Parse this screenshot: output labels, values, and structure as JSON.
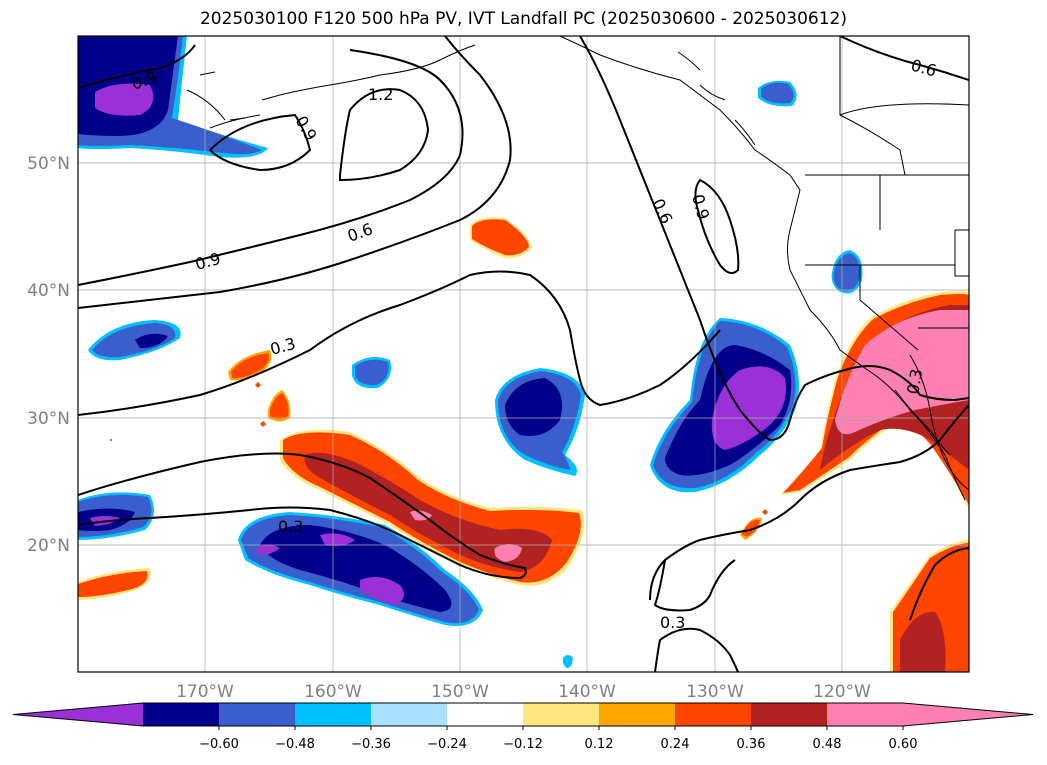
{
  "title": "2025030100 F120 500 hPa PV, IVT Landfall PC (2025030600 - 2025030612)",
  "axes": {
    "lat_ticks": [
      "50°N",
      "40°N",
      "30°N",
      "20°N"
    ],
    "lon_ticks": [
      "170°W",
      "160°W",
      "150°W",
      "140°W",
      "130°W",
      "120°W"
    ]
  },
  "contour_labels": [
    "0.9",
    "1.2",
    "0.9",
    "0.6",
    "0.6",
    "0.9",
    "0.9",
    "0.6",
    "0.3",
    "0.3",
    "0.3",
    "0.3"
  ],
  "colorbar": {
    "tick_labels": [
      "−0.60",
      "−0.48",
      "−0.36",
      "−0.24",
      "−0.12",
      "0.12",
      "0.24",
      "0.36",
      "0.48",
      "0.60"
    ],
    "colors": [
      "#9b30d8",
      "#00008b",
      "#3a5fcd",
      "#00bfff",
      "#aadfff",
      "#ffffff",
      "#ffe680",
      "#ffa500",
      "#ff4500",
      "#b22222",
      "#ff80b3",
      "#ff80b3"
    ]
  }
}
